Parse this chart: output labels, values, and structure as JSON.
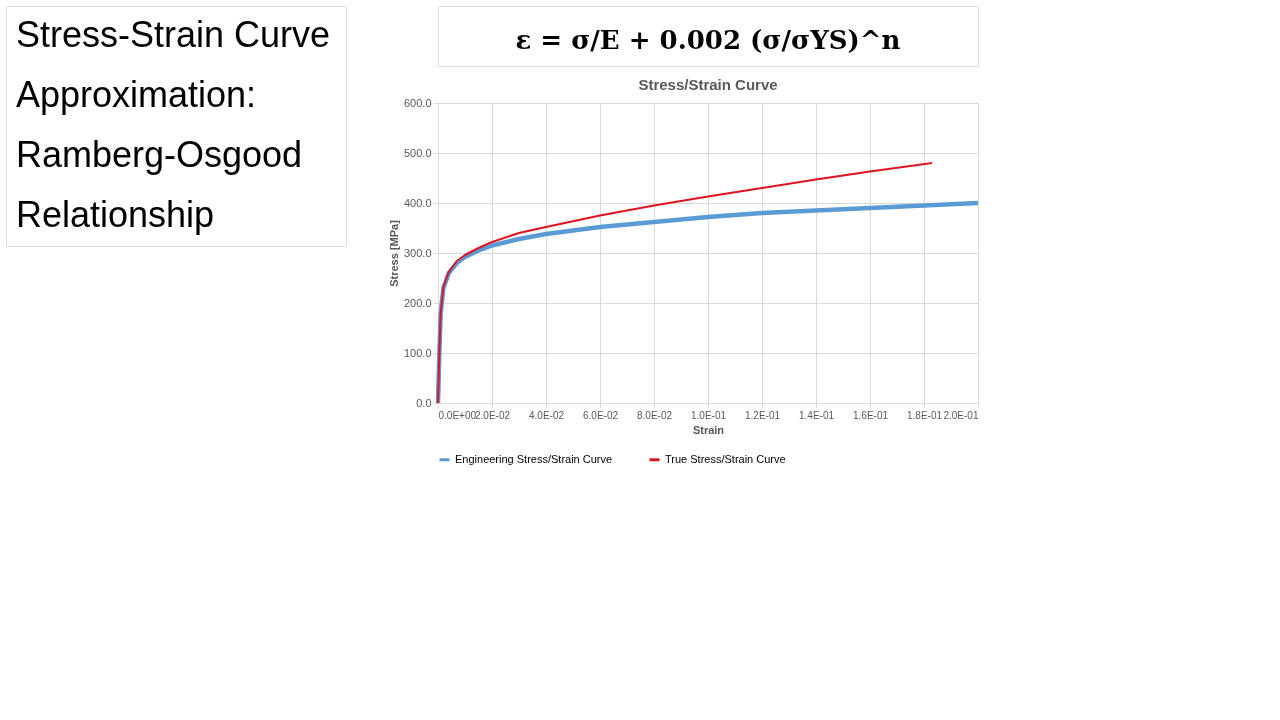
{
  "chart_data": {
    "type": "line",
    "title": "Stress/Strain Curve",
    "xlabel": "Strain",
    "ylabel": "Stress [MPa]",
    "annotations": [
      "ε = σ/E + 0.002 (σ/σYS)^n",
      "Stress-Strain Curve",
      "Approximation:",
      "Ramberg-Osgood",
      "Relationship"
    ],
    "xlim": [
      0,
      0.2
    ],
    "ylim": [
      0,
      600
    ],
    "xticks": [
      {
        "value": 0,
        "label": "0.0E+00"
      },
      {
        "value": 0.02,
        "label": "2.0E-02"
      },
      {
        "value": 0.04,
        "label": "4.0E-02"
      },
      {
        "value": 0.06,
        "label": "6.0E-02"
      },
      {
        "value": 0.08,
        "label": "8.0E-02"
      },
      {
        "value": 0.1,
        "label": "1.0E-01"
      },
      {
        "value": 0.12,
        "label": "1.2E-01"
      },
      {
        "value": 0.14,
        "label": "1.4E-01"
      },
      {
        "value": 0.16,
        "label": "1.6E-01"
      },
      {
        "value": 0.18,
        "label": "1.8E-01"
      },
      {
        "value": 0.2,
        "label": "2.0E-01"
      }
    ],
    "yticks": [
      {
        "value": 0,
        "label": "0.0"
      },
      {
        "value": 100,
        "label": "100.0"
      },
      {
        "value": 200,
        "label": "200.0"
      },
      {
        "value": 300,
        "label": "300.0"
      },
      {
        "value": 400,
        "label": "400.0"
      },
      {
        "value": 500,
        "label": "500.0"
      },
      {
        "value": 600,
        "label": "600.0"
      }
    ],
    "grid": true,
    "legend": "bottom",
    "marker": "none",
    "line_style": "solid",
    "series": [
      {
        "name": "Engineering Stress/Strain Curve",
        "color": "#5b9bd5",
        "x": [
          0,
          0.0005,
          0.001,
          0.002,
          0.004,
          0.007,
          0.01,
          0.015,
          0.02,
          0.03,
          0.04,
          0.05,
          0.06,
          0.08,
          0.1,
          0.12,
          0.14,
          0.16,
          0.18,
          0.2
        ],
        "values": [
          0,
          100,
          180,
          230,
          260,
          280,
          292,
          305,
          315,
          328,
          338,
          345,
          352,
          362,
          372,
          380,
          385,
          390,
          395,
          400
        ]
      },
      {
        "name": "True Stress/Strain Curve",
        "color": "#e0141e",
        "x": [
          0,
          0.0005,
          0.001,
          0.002,
          0.004,
          0.007,
          0.01,
          0.015,
          0.02,
          0.03,
          0.04,
          0.06,
          0.08,
          0.1,
          0.12,
          0.14,
          0.16,
          0.183
        ],
        "values": [
          0,
          100,
          180,
          232,
          262,
          284,
          296,
          310,
          322,
          340,
          352,
          375,
          395,
          413,
          430,
          447,
          463,
          480
        ]
      }
    ]
  }
}
